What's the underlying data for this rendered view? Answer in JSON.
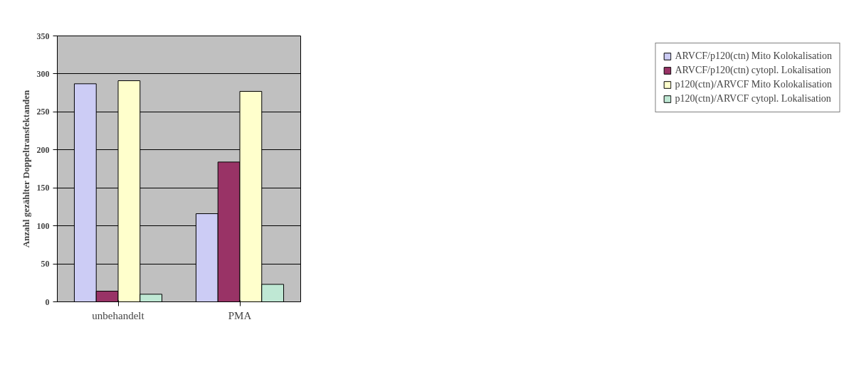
{
  "chart_data": {
    "type": "bar",
    "ylabel": "Anzahl gezählter Doppeltransfektanden",
    "categories": [
      "unbehandelt",
      "PMA"
    ],
    "series": [
      {
        "name": "ARVCF/p120(ctn) Mito Kolokalisation",
        "color": "#ccccf5",
        "values": [
          287,
          116
        ]
      },
      {
        "name": "ARVCF/p120(ctn) cytopl. Lokalisation",
        "color": "#993366",
        "values": [
          14,
          184
        ]
      },
      {
        "name": "p120(ctn)/ARVCF Mito Kolokalisation",
        "color": "#ffffcc",
        "values": [
          291,
          277
        ]
      },
      {
        "name": "p120(ctn)/ARVCF cytopl. Lokalisation",
        "color": "#bfe8d4",
        "values": [
          10,
          23
        ]
      }
    ],
    "ylim": [
      0,
      350
    ],
    "yticks": [
      0,
      50,
      100,
      150,
      200,
      250,
      300,
      350
    ],
    "grid": "y",
    "legend": "right"
  }
}
